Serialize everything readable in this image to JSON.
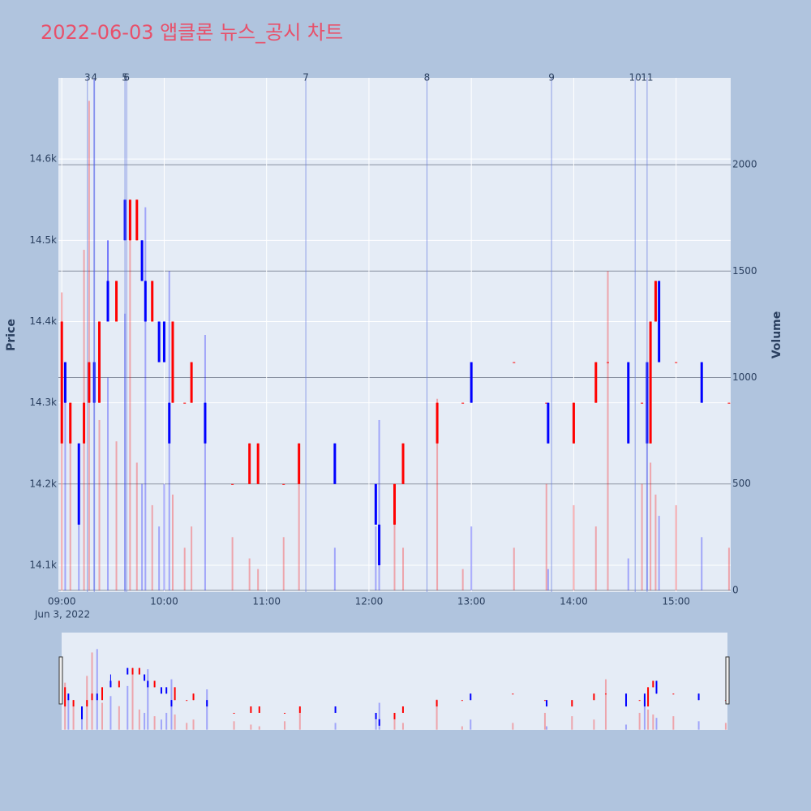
{
  "chart_data": {
    "type": "candlestick",
    "title": "2022-06-03 앱클론 뉴스_공시 차트",
    "y_label": "Price",
    "y2_label": "Volume",
    "x_date_label": "Jun 3, 2022",
    "increasing_color": "#ff0000",
    "decreasing_color": "#0000ff",
    "x": [
      "09:00",
      "09:02",
      "09:05",
      "09:10",
      "09:13",
      "09:16",
      "09:19",
      "09:22",
      "09:27",
      "09:32",
      "09:37",
      "09:40",
      "09:44",
      "09:47",
      "09:49",
      "09:53",
      "09:57",
      "10:00",
      "10:03",
      "10:05",
      "10:12",
      "10:16",
      "10:24",
      "10:40",
      "10:50",
      "10:55",
      "11:10",
      "11:19",
      "11:40",
      "12:04",
      "12:06",
      "12:15",
      "12:20",
      "12:40",
      "12:55",
      "13:00",
      "13:25",
      "13:44",
      "13:45",
      "14:00",
      "14:13",
      "14:20",
      "14:32",
      "14:40",
      "14:43",
      "14:45",
      "14:48",
      "14:50",
      "15:00",
      "15:15",
      "15:31"
    ],
    "open": [
      14250,
      14350,
      14250,
      14250,
      14250,
      14300,
      14350,
      14300,
      14450,
      14400,
      14550,
      14500,
      14500,
      14500,
      14450,
      14400,
      14400,
      14400,
      14300,
      14300,
      14300,
      14300,
      14300,
      14200,
      14200,
      14200,
      14200,
      14200,
      14250,
      14200,
      14150,
      14150,
      14200,
      14250,
      14300,
      14350,
      14350,
      14300,
      14300,
      14250,
      14300,
      14350,
      14350,
      14300,
      14350,
      14250,
      14400,
      14450,
      14350,
      14350,
      14300
    ],
    "high": [
      14400,
      14350,
      14300,
      14250,
      14300,
      14350,
      14350,
      14400,
      14500,
      14450,
      14550,
      14550,
      14550,
      14500,
      14450,
      14450,
      14400,
      14400,
      14300,
      14400,
      14300,
      14350,
      14300,
      14200,
      14250,
      14250,
      14200,
      14250,
      14250,
      14200,
      14150,
      14200,
      14250,
      14300,
      14300,
      14350,
      14350,
      14300,
      14300,
      14300,
      14350,
      14350,
      14350,
      14300,
      14350,
      14400,
      14450,
      14450,
      14350,
      14350,
      14300
    ],
    "low": [
      14250,
      14300,
      14250,
      14150,
      14250,
      14300,
      14300,
      14300,
      14400,
      14400,
      14500,
      14500,
      14500,
      14450,
      14400,
      14400,
      14350,
      14350,
      14250,
      14300,
      14300,
      14300,
      14250,
      14200,
      14200,
      14200,
      14200,
      14200,
      14200,
      14150,
      14100,
      14150,
      14200,
      14250,
      14300,
      14300,
      14350,
      14300,
      14250,
      14250,
      14300,
      14350,
      14250,
      14300,
      14250,
      14250,
      14400,
      14350,
      14350,
      14300,
      14300
    ],
    "close": [
      14400,
      14300,
      14300,
      14150,
      14300,
      14350,
      14300,
      14400,
      14400,
      14450,
      14500,
      14550,
      14550,
      14450,
      14400,
      14450,
      14350,
      14350,
      14250,
      14400,
      14300,
      14350,
      14250,
      14200,
      14250,
      14250,
      14200,
      14250,
      14200,
      14150,
      14100,
      14200,
      14250,
      14300,
      14300,
      14300,
      14350,
      14300,
      14250,
      14300,
      14350,
      14350,
      14250,
      14300,
      14250,
      14400,
      14450,
      14350,
      14350,
      14300,
      14300
    ],
    "volume": [
      1400,
      900,
      700,
      600,
      1600,
      2300,
      2400,
      800,
      1000,
      700,
      1300,
      1700,
      600,
      500,
      1800,
      400,
      300,
      500,
      1500,
      450,
      200,
      300,
      1200,
      250,
      150,
      100,
      250,
      500,
      200,
      300,
      800,
      400,
      200,
      900,
      100,
      300,
      200,
      500,
      100,
      400,
      300,
      1500,
      150,
      500,
      1000,
      600,
      450,
      350,
      400,
      250,
      200
    ],
    "xlim": [
      "08:58",
      "15:32"
    ],
    "xticks": [
      "09:00",
      "10:00",
      "11:00",
      "12:00",
      "13:00",
      "14:00",
      "15:00"
    ],
    "ylim": [
      14067,
      14700
    ],
    "yticks": [
      {
        "value": 14100,
        "label": "14.1k"
      },
      {
        "value": 14200,
        "label": "14.2k"
      },
      {
        "value": 14300,
        "label": "14.3k"
      },
      {
        "value": 14400,
        "label": "14.4k"
      },
      {
        "value": 14500,
        "label": "14.5k"
      },
      {
        "value": 14600,
        "label": "14.6k"
      }
    ],
    "y2lim": [
      -8,
      2408
    ],
    "y2ticks": [
      0,
      500,
      1000,
      1500,
      2000
    ],
    "annotations": [
      {
        "x": "09:15",
        "label": "3"
      },
      {
        "x": "09:19",
        "label": "4"
      },
      {
        "x": "09:37",
        "label": "5"
      },
      {
        "x": "09:38",
        "label": "6"
      },
      {
        "x": "11:23",
        "label": "7"
      },
      {
        "x": "12:34",
        "label": "8"
      },
      {
        "x": "13:47",
        "label": "9"
      },
      {
        "x": "14:36",
        "label": "10"
      },
      {
        "x": "14:43",
        "label": "11"
      }
    ],
    "grid": true,
    "rangeslider": true
  }
}
